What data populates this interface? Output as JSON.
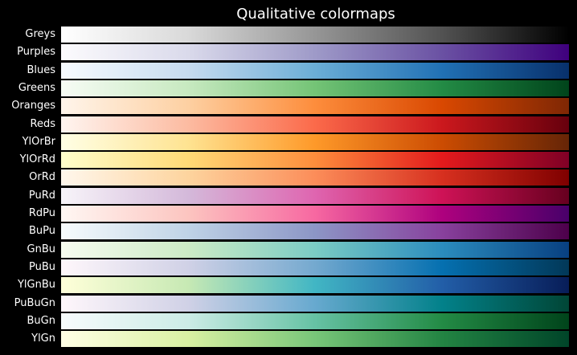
{
  "chart_data": {
    "type": "heatmap",
    "title": "Qualitative colormaps",
    "rows": [
      {
        "name": "Greys",
        "colors": [
          "#ffffff",
          "#d9d9d9",
          "#969696",
          "#525252",
          "#000000"
        ]
      },
      {
        "name": "Purples",
        "colors": [
          "#fcfbfd",
          "#dadaeb",
          "#9e9ac8",
          "#6a51a3",
          "#3f007d"
        ]
      },
      {
        "name": "Blues",
        "colors": [
          "#f7fbff",
          "#c6dbef",
          "#6baed6",
          "#2171b5",
          "#08306b"
        ]
      },
      {
        "name": "Greens",
        "colors": [
          "#f7fcf5",
          "#c7e9c0",
          "#74c476",
          "#238b45",
          "#00441b"
        ]
      },
      {
        "name": "Oranges",
        "colors": [
          "#fff5eb",
          "#fdd0a2",
          "#fd8d3c",
          "#d94801",
          "#7f2704"
        ]
      },
      {
        "name": "Reds",
        "colors": [
          "#fff5f0",
          "#fcbba1",
          "#fb6a4a",
          "#cb181d",
          "#67000d"
        ]
      },
      {
        "name": "YlOrBr",
        "colors": [
          "#ffffe5",
          "#fee391",
          "#fe9929",
          "#cc4c02",
          "#662506"
        ]
      },
      {
        "name": "YlOrRd",
        "colors": [
          "#ffffcc",
          "#fed976",
          "#fd8d3c",
          "#e31a1c",
          "#800026"
        ]
      },
      {
        "name": "OrRd",
        "colors": [
          "#fff7ec",
          "#fdd49e",
          "#fc8d59",
          "#d7301f",
          "#7f0000"
        ]
      },
      {
        "name": "PuRd",
        "colors": [
          "#f7f4f9",
          "#d4b9da",
          "#df65b0",
          "#ce1256",
          "#67001f"
        ]
      },
      {
        "name": "RdPu",
        "colors": [
          "#fff7f3",
          "#fcc5c0",
          "#f768a1",
          "#ae017e",
          "#49006a"
        ]
      },
      {
        "name": "BuPu",
        "colors": [
          "#f7fcfd",
          "#bfd3e6",
          "#8c96c6",
          "#88419d",
          "#4d004b"
        ]
      },
      {
        "name": "GnBu",
        "colors": [
          "#f7fcf0",
          "#ccebc5",
          "#7bccc4",
          "#2b8cbe",
          "#084081"
        ]
      },
      {
        "name": "PuBu",
        "colors": [
          "#fff7fb",
          "#d0d1e6",
          "#74a9cf",
          "#0570b0",
          "#023858"
        ]
      },
      {
        "name": "YlGnBu",
        "colors": [
          "#ffffd9",
          "#c7e9b4",
          "#41b6c4",
          "#225ea8",
          "#081d58"
        ]
      },
      {
        "name": "PuBuGn",
        "colors": [
          "#fff7fb",
          "#d0d1e6",
          "#67a9cf",
          "#02818a",
          "#014636"
        ]
      },
      {
        "name": "BuGn",
        "colors": [
          "#f7fcfd",
          "#ccece6",
          "#66c2a4",
          "#238b45",
          "#00441b"
        ]
      },
      {
        "name": "YlGn",
        "colors": [
          "#ffffe5",
          "#d9f0a3",
          "#78c679",
          "#238443",
          "#004529"
        ]
      }
    ]
  }
}
